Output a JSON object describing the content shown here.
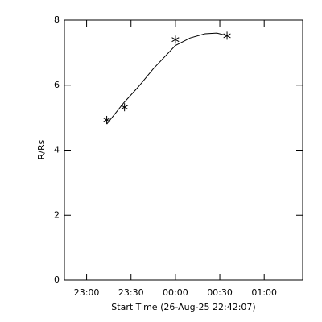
{
  "chart_data": {
    "type": "scatter",
    "xlabel": "Start Time (26-Aug-25 22:42:07)",
    "ylabel": "R/Rs",
    "xlim": [
      1365,
      1526
    ],
    "ylim": [
      0,
      8
    ],
    "xticks": [
      {
        "value": 1380,
        "label": "23:00"
      },
      {
        "value": 1410,
        "label": "23:30"
      },
      {
        "value": 1440,
        "label": "00:00"
      },
      {
        "value": 1470,
        "label": "00:30"
      },
      {
        "value": 1500,
        "label": "01:00"
      }
    ],
    "yticks": [
      0,
      2,
      4,
      6,
      8
    ],
    "color": "#000000",
    "series": [
      {
        "kind": "points",
        "marker": "asterisk",
        "x": [
          1393.6,
          1405.6,
          1440,
          1474.9
        ],
        "values": [
          4.93,
          5.32,
          7.4,
          7.52
        ]
      },
      {
        "kind": "line",
        "x": [
          1393.6,
          1405,
          1415,
          1425,
          1440,
          1450,
          1460,
          1468,
          1475
        ],
        "values": [
          4.8,
          5.45,
          5.95,
          6.5,
          7.22,
          7.45,
          7.58,
          7.6,
          7.52
        ]
      }
    ]
  }
}
